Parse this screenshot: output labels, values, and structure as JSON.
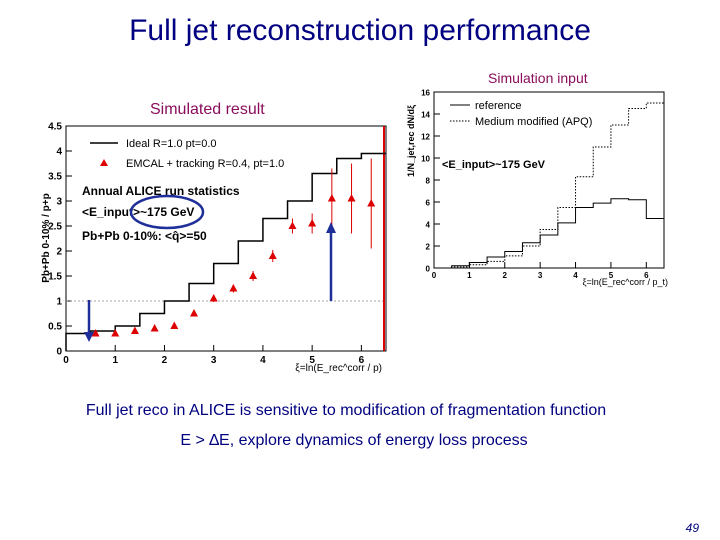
{
  "slide": {
    "title": "Full jet reconstruction performance",
    "simulation_input_label": "Simulation input",
    "simulated_result_label": "Simulated result",
    "statements": [
      "Full jet reco in ALICE is sensitive to modification of fragmentation function",
      "E > ∆E, explore dynamics of energy loss process"
    ],
    "page_number": "49"
  },
  "chart_data": [
    {
      "type": "line",
      "id": "simulated-result",
      "ylabel": "Pb+Pb 0-10% / p+p",
      "xlabel": "ξ=ln(E_rec^corr / p)",
      "xlim": [
        0,
        6.5
      ],
      "ylim": [
        0,
        4.5
      ],
      "x_ticks": [
        "0",
        "1",
        "2",
        "3",
        "4",
        "5",
        "6"
      ],
      "y_ticks": [
        "0",
        "0.5",
        "1",
        "1.5",
        "2",
        "2.5",
        "3",
        "3.5",
        "4",
        "4.5"
      ],
      "legend_entries": [
        "Ideal R=1.0 pt=0.0",
        "EMCAL + tracking R=0.4, pt=1.0"
      ],
      "annotations": [
        "Annual ALICE run statistics",
        "<E_input>~175 GeV",
        "Pb+Pb 0-10%: <q̂>=50"
      ],
      "reference_line_y": 1,
      "colors": {
        "ideal": "#000000",
        "emcal": "#dd0000",
        "circle": "#1f2f9a",
        "arrow": "#1f2f9a"
      },
      "series": [
        {
          "name": "Ideal R=1.0 pt=0.0",
          "style": "step",
          "edges": [
            0,
            0.5,
            1.0,
            1.5,
            2.0,
            2.5,
            3.0,
            3.5,
            4.0,
            4.5,
            5.0,
            5.5,
            6.0,
            6.5
          ],
          "values": [
            0.35,
            0.4,
            0.5,
            0.75,
            1.0,
            1.35,
            1.75,
            2.2,
            2.65,
            3.0,
            3.55,
            3.85,
            3.95
          ]
        },
        {
          "name": "EMCAL + tracking R=0.4, pt=1.0",
          "style": "points",
          "x": [
            0.6,
            1.0,
            1.4,
            1.8,
            2.2,
            2.6,
            3.0,
            3.4,
            3.8,
            4.2,
            4.6,
            5.0,
            5.4,
            5.8,
            6.2
          ],
          "y": [
            0.35,
            0.35,
            0.4,
            0.45,
            0.5,
            0.75,
            1.05,
            1.25,
            1.5,
            1.9,
            2.5,
            2.55,
            3.05,
            3.05,
            2.95
          ],
          "err": [
            0.06,
            0.05,
            0.05,
            0.05,
            0.05,
            0.06,
            0.07,
            0.08,
            0.1,
            0.12,
            0.15,
            0.2,
            0.6,
            0.7,
            0.9
          ]
        }
      ]
    },
    {
      "type": "line",
      "id": "simulation-input",
      "ylabel": "1/N_jet,rec dN/dξ",
      "xlabel": "ξ=ln(E_rec^corr / p_t)",
      "xlim": [
        0,
        6.5
      ],
      "ylim": [
        0,
        16
      ],
      "x_ticks": [
        "0",
        "1",
        "2",
        "3",
        "4",
        "5",
        "6"
      ],
      "y_ticks": [
        "0",
        "2",
        "4",
        "6",
        "8",
        "10",
        "12",
        "14",
        "16"
      ],
      "legend_entries": [
        "reference",
        "Medium modified (APQ)"
      ],
      "annotations": [
        "<E_input>~175 GeV"
      ],
      "series": [
        {
          "name": "reference",
          "style": "step-solid",
          "edges": [
            0,
            0.5,
            1.0,
            1.5,
            2.0,
            2.5,
            3.0,
            3.5,
            4.0,
            4.5,
            5.0,
            5.5,
            6.0,
            6.5
          ],
          "values": [
            0,
            0.2,
            0.5,
            1.0,
            1.5,
            2.3,
            3.0,
            4.1,
            5.5,
            5.9,
            6.3,
            6.2,
            4.5
          ]
        },
        {
          "name": "Medium modified (APQ)",
          "style": "step-dotted",
          "edges": [
            0,
            0.5,
            1.0,
            1.5,
            2.0,
            2.5,
            3.0,
            3.5,
            4.0,
            4.5,
            5.0,
            5.5,
            6.0,
            6.5
          ],
          "values": [
            0,
            0.1,
            0.3,
            0.6,
            1.1,
            2.0,
            3.5,
            5.5,
            8.3,
            11.0,
            13.0,
            14.5,
            15.0
          ]
        }
      ]
    }
  ]
}
